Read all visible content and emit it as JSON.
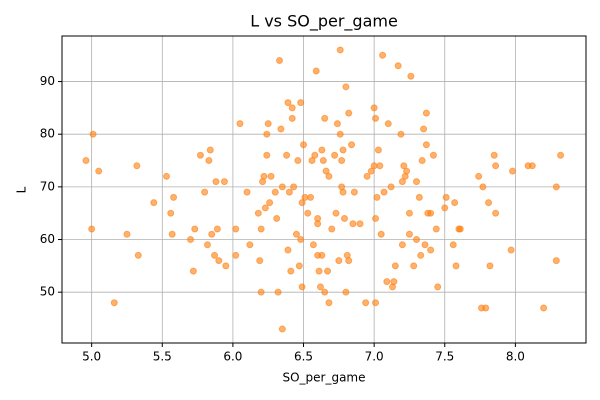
{
  "chart_data": {
    "type": "scatter",
    "title": "L vs SO_per_game",
    "xlabel": "SO_per_game",
    "ylabel": "L",
    "color": "#ff7f0e",
    "grid": true,
    "xlim": [
      4.79,
      8.5
    ],
    "ylim": [
      40.35,
      98.65
    ],
    "xticks": [
      {
        "value": 5,
        "label": "5.0"
      },
      {
        "value": 5.5,
        "label": "5.5"
      },
      {
        "value": 6,
        "label": "6.0"
      },
      {
        "value": 6.5,
        "label": "6.5"
      },
      {
        "value": 7,
        "label": "7.0"
      },
      {
        "value": 7.5,
        "label": "7.5"
      },
      {
        "value": 8,
        "label": "8.0"
      }
    ],
    "yticks": [
      50,
      60,
      70,
      80,
      90
    ],
    "x": [
      4.96,
      5.0,
      5.01,
      5.05,
      5.16,
      5.25,
      5.32,
      5.33,
      5.44,
      5.53,
      5.56,
      5.57,
      5.58,
      5.7,
      5.72,
      5.73,
      5.77,
      5.8,
      5.82,
      5.83,
      5.84,
      5.85,
      5.87,
      5.88,
      5.89,
      5.9,
      5.94,
      5.95,
      6.02,
      6.02,
      6.05,
      6.1,
      6.12,
      6.18,
      6.19,
      6.2,
      6.2,
      6.21,
      6.22,
      6.23,
      6.24,
      6.24,
      6.25,
      6.26,
      6.27,
      6.3,
      6.31,
      6.32,
      6.33,
      6.34,
      6.35,
      6.35,
      6.38,
      6.39,
      6.39,
      6.4,
      6.41,
      6.42,
      6.42,
      6.43,
      6.45,
      6.46,
      6.47,
      6.48,
      6.48,
      6.49,
      6.49,
      6.5,
      6.51,
      6.53,
      6.55,
      6.56,
      6.57,
      6.58,
      6.59,
      6.6,
      6.6,
      6.6,
      6.61,
      6.62,
      6.63,
      6.63,
      6.64,
      6.65,
      6.65,
      6.66,
      6.67,
      6.68,
      6.68,
      6.7,
      6.72,
      6.73,
      6.74,
      6.75,
      6.76,
      6.76,
      6.77,
      6.77,
      6.78,
      6.78,
      6.79,
      6.8,
      6.8,
      6.81,
      6.82,
      6.82,
      6.84,
      6.85,
      6.86,
      6.9,
      6.94,
      6.95,
      6.98,
      7.0,
      7.0,
      7.01,
      7.01,
      7.01,
      7.02,
      7.03,
      7.04,
      7.05,
      7.06,
      7.07,
      7.09,
      7.1,
      7.12,
      7.13,
      7.14,
      7.15,
      7.17,
      7.19,
      7.2,
      7.2,
      7.21,
      7.22,
      7.23,
      7.25,
      7.25,
      7.26,
      7.28,
      7.3,
      7.3,
      7.32,
      7.33,
      7.34,
      7.35,
      7.36,
      7.37,
      7.37,
      7.38,
      7.4,
      7.4,
      7.42,
      7.44,
      7.45,
      7.5,
      7.51,
      7.56,
      7.57,
      7.58,
      7.6,
      7.61,
      7.74,
      7.76,
      7.77,
      7.79,
      7.81,
      7.82,
      7.85,
      7.86,
      7.86,
      7.97,
      7.98,
      8.09,
      8.12,
      8.2,
      8.29,
      8.29,
      8.32
    ],
    "values": [
      75,
      62,
      80,
      73,
      48,
      61,
      74,
      57,
      67,
      72,
      65,
      61,
      68,
      60,
      54,
      62,
      76,
      69,
      59,
      75,
      77,
      61,
      57,
      71,
      62,
      56,
      71,
      55,
      57,
      62,
      82,
      69,
      59,
      65,
      56,
      62,
      50,
      71,
      72,
      66,
      76,
      80,
      82,
      67,
      72,
      69,
      64,
      50,
      94,
      81,
      43,
      70,
      76,
      86,
      58,
      69,
      54,
      85,
      83,
      70,
      61,
      75,
      55,
      86,
      60,
      51,
      67,
      78,
      68,
      65,
      68,
      75,
      59,
      76,
      92,
      63,
      64,
      57,
      54,
      51,
      77,
      57,
      75,
      83,
      50,
      73,
      54,
      48,
      72,
      62,
      76,
      65,
      82,
      56,
      80,
      96,
      75,
      70,
      77,
      69,
      64,
      89,
      50,
      57,
      84,
      56,
      78,
      63,
      69,
      63,
      48,
      72,
      73,
      85,
      74,
      83,
      64,
      48,
      68,
      77,
      74,
      61,
      95,
      69,
      52,
      82,
      70,
      51,
      52,
      55,
      93,
      80,
      59,
      71,
      74,
      72,
      73,
      65,
      61,
      91,
      55,
      60,
      71,
      68,
      57,
      75,
      81,
      59,
      84,
      78,
      65,
      65,
      58,
      76,
      62,
      51,
      66,
      68,
      59,
      67,
      55,
      62,
      62,
      72,
      47,
      70,
      47,
      67,
      55,
      76,
      65,
      74,
      58,
      73,
      74,
      74,
      47,
      70,
      56,
      76
    ]
  }
}
